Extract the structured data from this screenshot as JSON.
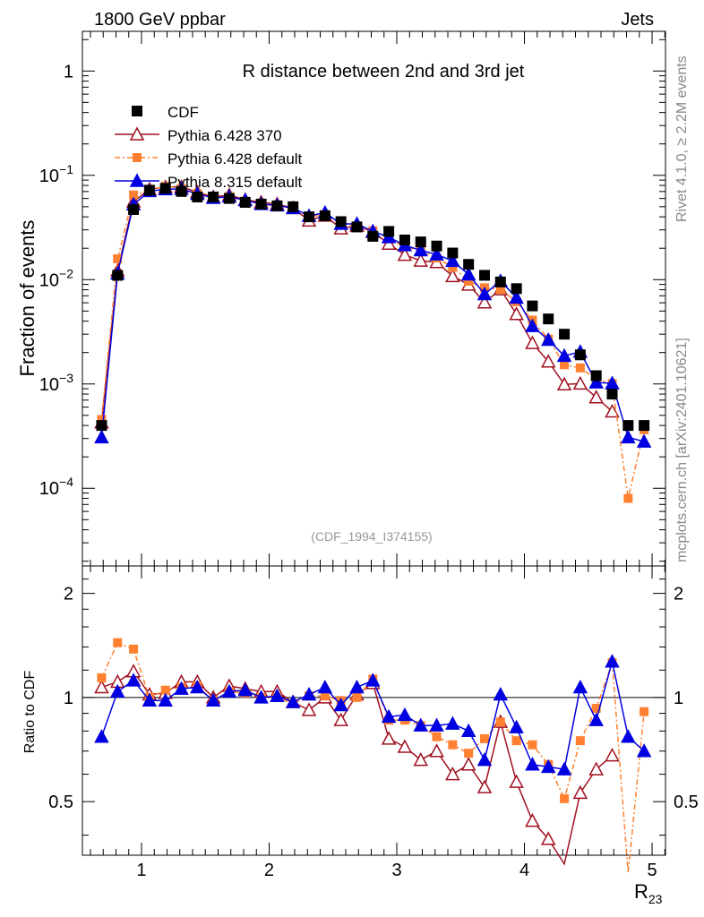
{
  "header": {
    "left": "1800 GeV ppbar",
    "right": "Jets"
  },
  "side_labels": {
    "top": "Rivet 4.1.0, ≥ 2.2M events",
    "bottom": "mcplots.cern.ch [arXiv:2401.10621]"
  },
  "chart_data": {
    "type": "line",
    "title": "R distance between 2nd and 3rd jet",
    "analysis_tag": "(CDF_1994_I374155)",
    "xlabel_main": "R",
    "xlabel_sub": "23",
    "ylabel": "Fraction of events",
    "ratio_ylabel": "Ratio to CDF",
    "xlim": [
      0.537,
      5.105
    ],
    "ylim": [
      1.8e-05,
      2.4
    ],
    "yscale": "log",
    "ratio_ylim": [
      0.35,
      2.4
    ],
    "x_ticks": [
      "1",
      "2",
      "3",
      "4",
      "5"
    ],
    "y_ticks": [
      {
        "base": "1",
        "exp": ""
      },
      {
        "base": "10",
        "exp": "−1"
      },
      {
        "base": "10",
        "exp": "−2"
      },
      {
        "base": "10",
        "exp": "−3"
      },
      {
        "base": "10",
        "exp": "−4"
      }
    ],
    "ratio_ticks": [
      "2",
      "1",
      "0.5"
    ],
    "legend_position": "top-left",
    "x": [
      0.6875,
      0.8125,
      0.9375,
      1.0625,
      1.1875,
      1.3125,
      1.4375,
      1.5625,
      1.6875,
      1.8125,
      1.9375,
      2.0625,
      2.1875,
      2.3125,
      2.4375,
      2.5625,
      2.6875,
      2.8125,
      2.9375,
      3.0625,
      3.1875,
      3.3125,
      3.4375,
      3.5625,
      3.6875,
      3.8125,
      3.9375,
      4.0625,
      4.1875,
      4.3125,
      4.4375,
      4.5625,
      4.6875,
      4.8125,
      4.9375
    ],
    "data": {
      "name": "CDF",
      "values": [
        0.0004,
        0.011,
        0.047,
        0.072,
        0.075,
        0.07,
        0.062,
        0.062,
        0.06,
        0.055,
        0.053,
        0.051,
        0.05,
        0.04,
        0.041,
        0.036,
        0.032,
        0.026,
        0.029,
        0.024,
        0.023,
        0.021,
        0.018,
        0.014,
        0.011,
        0.0095,
        0.0082,
        0.0056,
        0.0042,
        0.003,
        0.0019,
        0.0012,
        0.0008,
        0.0004,
        0.0004
      ]
    },
    "series": [
      {
        "name": "Pythia 6.428 370",
        "color": "#a01020",
        "marker": "open-triangle",
        "dash": "",
        "ratio": [
          1.07,
          1.11,
          1.19,
          1.02,
          1.03,
          1.11,
          1.11,
          1.0,
          1.08,
          1.06,
          1.04,
          1.04,
          0.97,
          0.92,
          1.0,
          0.86,
          1.02,
          1.1,
          0.76,
          0.72,
          0.66,
          0.7,
          0.6,
          0.64,
          0.55,
          0.85,
          0.57,
          0.44,
          0.39,
          0.33,
          0.53,
          0.62,
          0.68,
          null,
          null
        ]
      },
      {
        "name": "Pythia 6.428 default",
        "color": "#ff8030",
        "marker": "square",
        "dash": "6,3,2,3",
        "ratio": [
          1.14,
          1.44,
          1.38,
          1.0,
          1.05,
          1.07,
          1.08,
          0.98,
          1.04,
          1.03,
          1.0,
          1.0,
          0.96,
          1.01,
          1.01,
          0.98,
          1.0,
          1.13,
          0.86,
          0.86,
          0.83,
          0.77,
          0.73,
          0.69,
          0.76,
          0.85,
          0.75,
          0.73,
          0.64,
          0.51,
          0.75,
          0.93,
          1.26,
          0.2,
          0.91
        ]
      },
      {
        "name": "Pythia 8.315 default",
        "color": "#0000e0",
        "marker": "triangle",
        "dash": "",
        "ratio": [
          0.77,
          1.04,
          1.12,
          0.98,
          0.98,
          1.06,
          1.07,
          0.98,
          1.04,
          1.05,
          1.0,
          1.01,
          0.97,
          1.02,
          1.07,
          0.95,
          1.07,
          1.12,
          0.88,
          0.89,
          0.83,
          0.83,
          0.84,
          0.8,
          0.66,
          1.02,
          0.82,
          0.64,
          0.63,
          0.62,
          1.07,
          0.86,
          1.27,
          0.77,
          0.7
        ]
      }
    ]
  }
}
